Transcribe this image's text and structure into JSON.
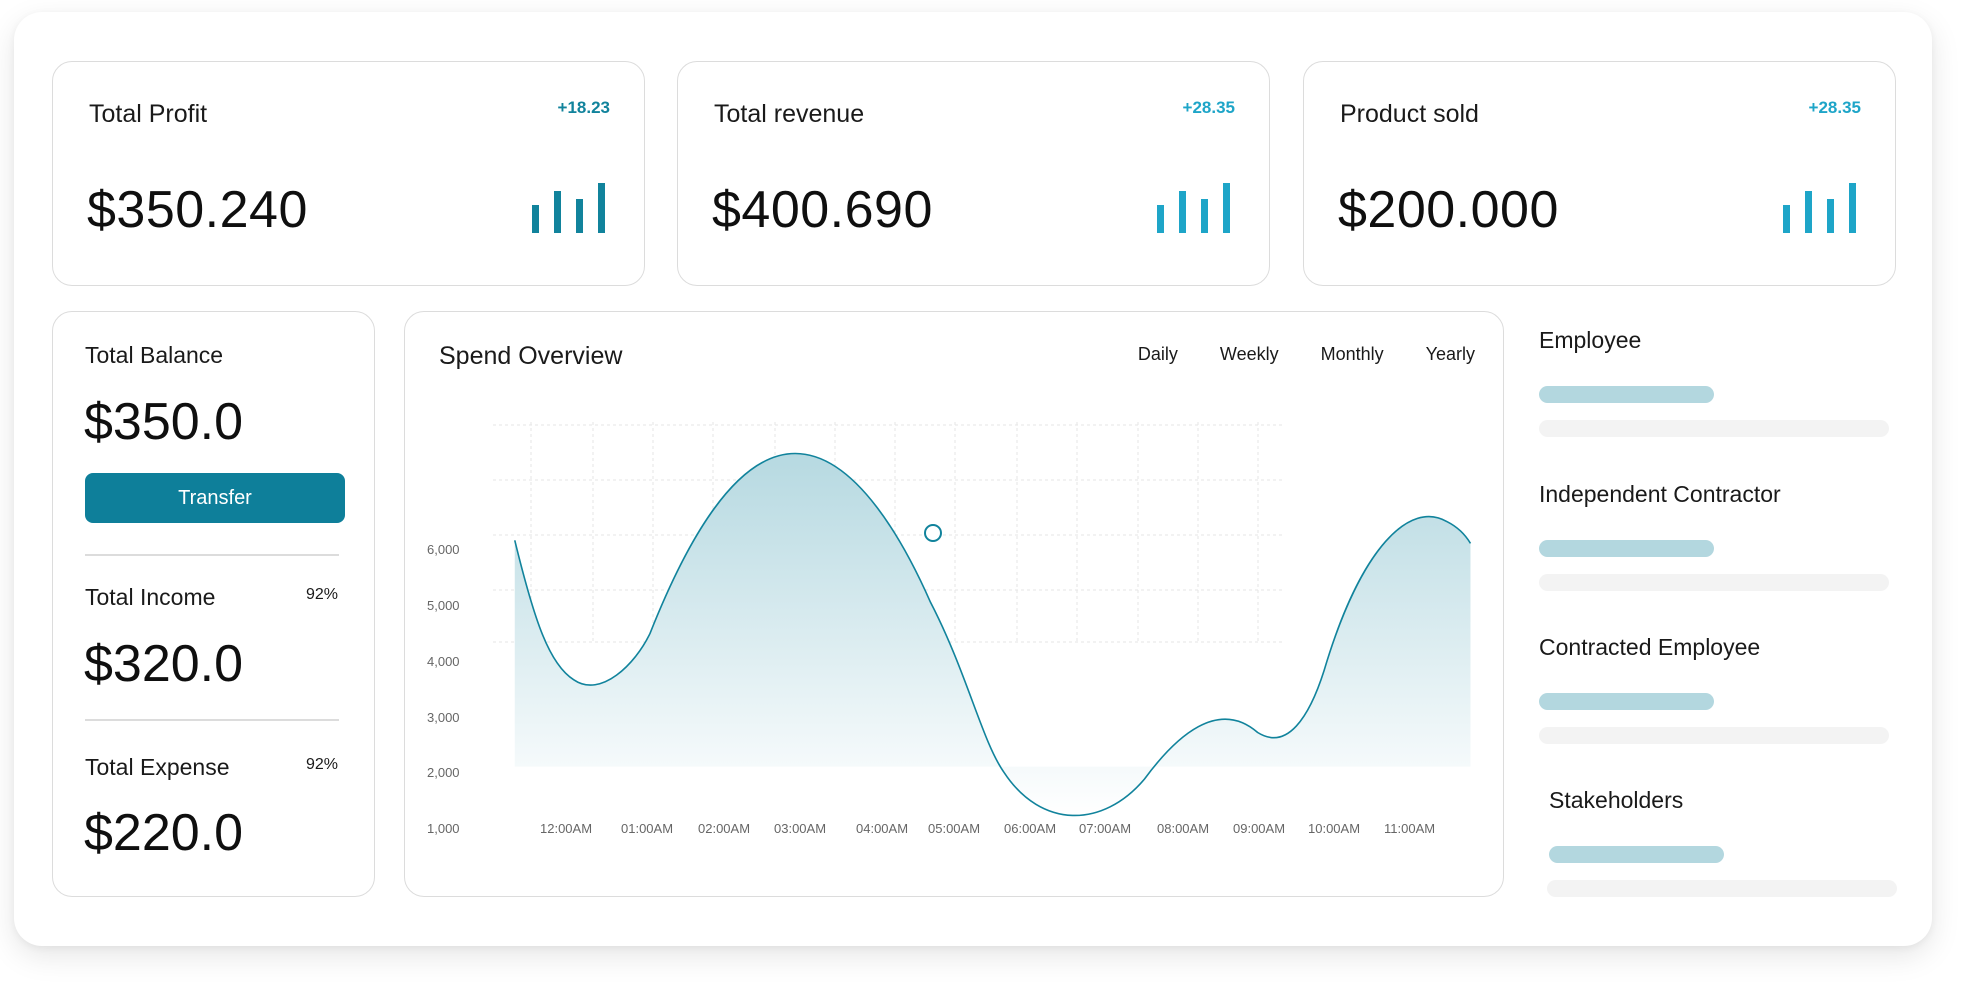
{
  "stats": [
    {
      "title": "Total Profit",
      "delta": "+18.23",
      "value": "$350.240",
      "color": "#11839c"
    },
    {
      "title": "Total revenue",
      "delta": "+28.35",
      "value": "$400.690",
      "color": "#1ea5c8"
    },
    {
      "title": "Product sold",
      "delta": "+28.35",
      "value": "$200.000",
      "color": "#1ea5c8"
    }
  ],
  "balance": {
    "balance_label": "Total Balance",
    "balance_value": "$350.0",
    "transfer_label": "Transfer",
    "income_label": "Total Income",
    "income_pct": "92%",
    "income_value": "$320.0",
    "expense_label": "Total Expense",
    "expense_pct": "92%",
    "expense_value": "$220.0"
  },
  "spend": {
    "title": "Spend Overview",
    "tabs": [
      "Daily",
      "Weekly",
      "Monthly",
      "Yearly"
    ]
  },
  "chart_data": {
    "type": "area",
    "title": "Spend Overview",
    "x": [
      "12:00AM",
      "01:00AM",
      "02:00AM",
      "03:00AM",
      "04:00AM",
      "05:00AM",
      "06:00AM",
      "07:00AM",
      "08:00AM",
      "09:00AM",
      "10:00AM",
      "11:00AM"
    ],
    "y_ticks": [
      "1,000",
      "2,000",
      "3,000",
      "4,000",
      "5,000",
      "6,000"
    ],
    "ylim": [
      1000,
      7000
    ],
    "grid": true,
    "line_color": "#11839c",
    "highlight_x": "04:00AM"
  },
  "employees": [
    {
      "label": "Employee",
      "fill": 0.5
    },
    {
      "label": "Independent Contractor",
      "fill": 0.5
    },
    {
      "label": "Contracted Employee",
      "fill": 0.5
    },
    {
      "label": "Stakeholders",
      "fill": 0.5
    }
  ]
}
